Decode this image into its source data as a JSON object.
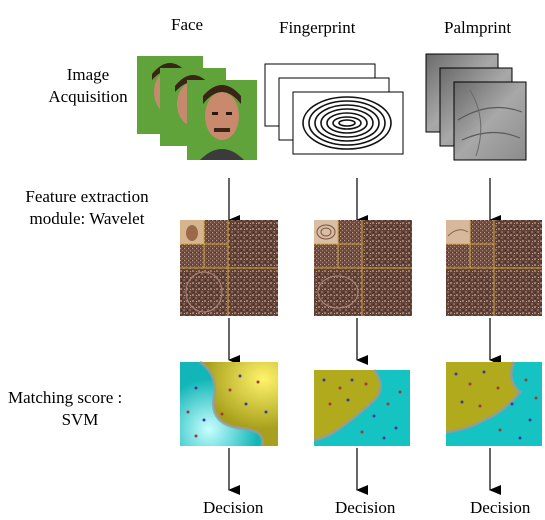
{
  "columns": {
    "face": "Face",
    "fingerprint": "Fingerprint",
    "palmprint": "Palmprint"
  },
  "rows": {
    "acquisition": [
      "Image",
      "Acquisition"
    ],
    "feature": [
      "Feature extraction",
      "module: Wavelet"
    ],
    "matching": [
      "Matching score   :",
      "SVM"
    ]
  },
  "decision": [
    "Decision",
    "Decision",
    "Decision"
  ],
  "colors": {
    "face_bg": "#5fa33a",
    "svm_yellow": "#b8b21a",
    "svm_cyan": "#15c3c3",
    "wavelet": "#6a4a3e",
    "grid_line": "#c8a23a"
  }
}
